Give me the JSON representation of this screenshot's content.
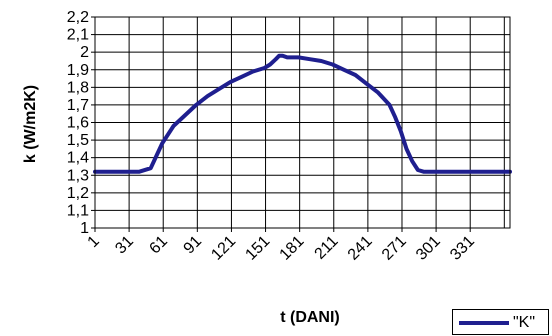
{
  "chart_data": {
    "type": "line",
    "xlabel": "t (DANI)",
    "ylabel": "k  (W/m2K)",
    "ylim": [
      1,
      2.2
    ],
    "xlim": [
      1,
      366
    ],
    "grid": true,
    "legend_position": "bottom-right",
    "y_ticks": [
      "1",
      "1,1",
      "1,2",
      "1,3",
      "1,4",
      "1,5",
      "1,6",
      "1,7",
      "1,8",
      "1,9",
      "2",
      "2,1",
      "2,2"
    ],
    "x_ticks": [
      "1",
      "31",
      "61",
      "91",
      "121",
      "151",
      "181",
      "211",
      "241",
      "271",
      "301",
      "331"
    ],
    "series": [
      {
        "name": "\"K\"",
        "color": "#1f1f8f",
        "x": [
          1,
          20,
          40,
          50,
          55,
          60,
          65,
          70,
          80,
          90,
          100,
          110,
          120,
          130,
          140,
          150,
          155,
          160,
          163,
          166,
          170,
          175,
          180,
          190,
          200,
          210,
          220,
          230,
          240,
          250,
          260,
          265,
          270,
          275,
          280,
          285,
          290,
          292,
          295,
          300,
          330,
          366
        ],
        "values": [
          1.32,
          1.32,
          1.32,
          1.34,
          1.41,
          1.48,
          1.53,
          1.58,
          1.64,
          1.7,
          1.75,
          1.79,
          1.83,
          1.86,
          1.89,
          1.91,
          1.93,
          1.96,
          1.98,
          1.98,
          1.97,
          1.97,
          1.97,
          1.96,
          1.95,
          1.93,
          1.9,
          1.87,
          1.82,
          1.77,
          1.7,
          1.63,
          1.55,
          1.45,
          1.38,
          1.33,
          1.32,
          1.32,
          1.32,
          1.32,
          1.32,
          1.32
        ]
      }
    ]
  }
}
